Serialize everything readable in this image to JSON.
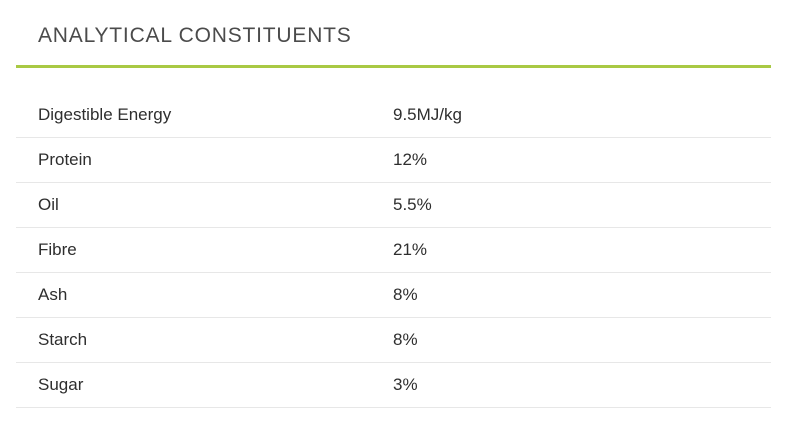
{
  "section": {
    "title": "ANALYTICAL CONSTITUENTS",
    "accent_color": "#a9c944",
    "separator_color": "#e7e7e7"
  },
  "table": {
    "rows": [
      {
        "label": "Digestible Energy",
        "value": "9.5MJ/kg"
      },
      {
        "label": "Protein",
        "value": "12%"
      },
      {
        "label": "Oil",
        "value": "5.5%"
      },
      {
        "label": "Fibre",
        "value": "21%"
      },
      {
        "label": "Ash",
        "value": "8%"
      },
      {
        "label": "Starch",
        "value": "8%"
      },
      {
        "label": "Sugar",
        "value": "3%"
      }
    ]
  }
}
